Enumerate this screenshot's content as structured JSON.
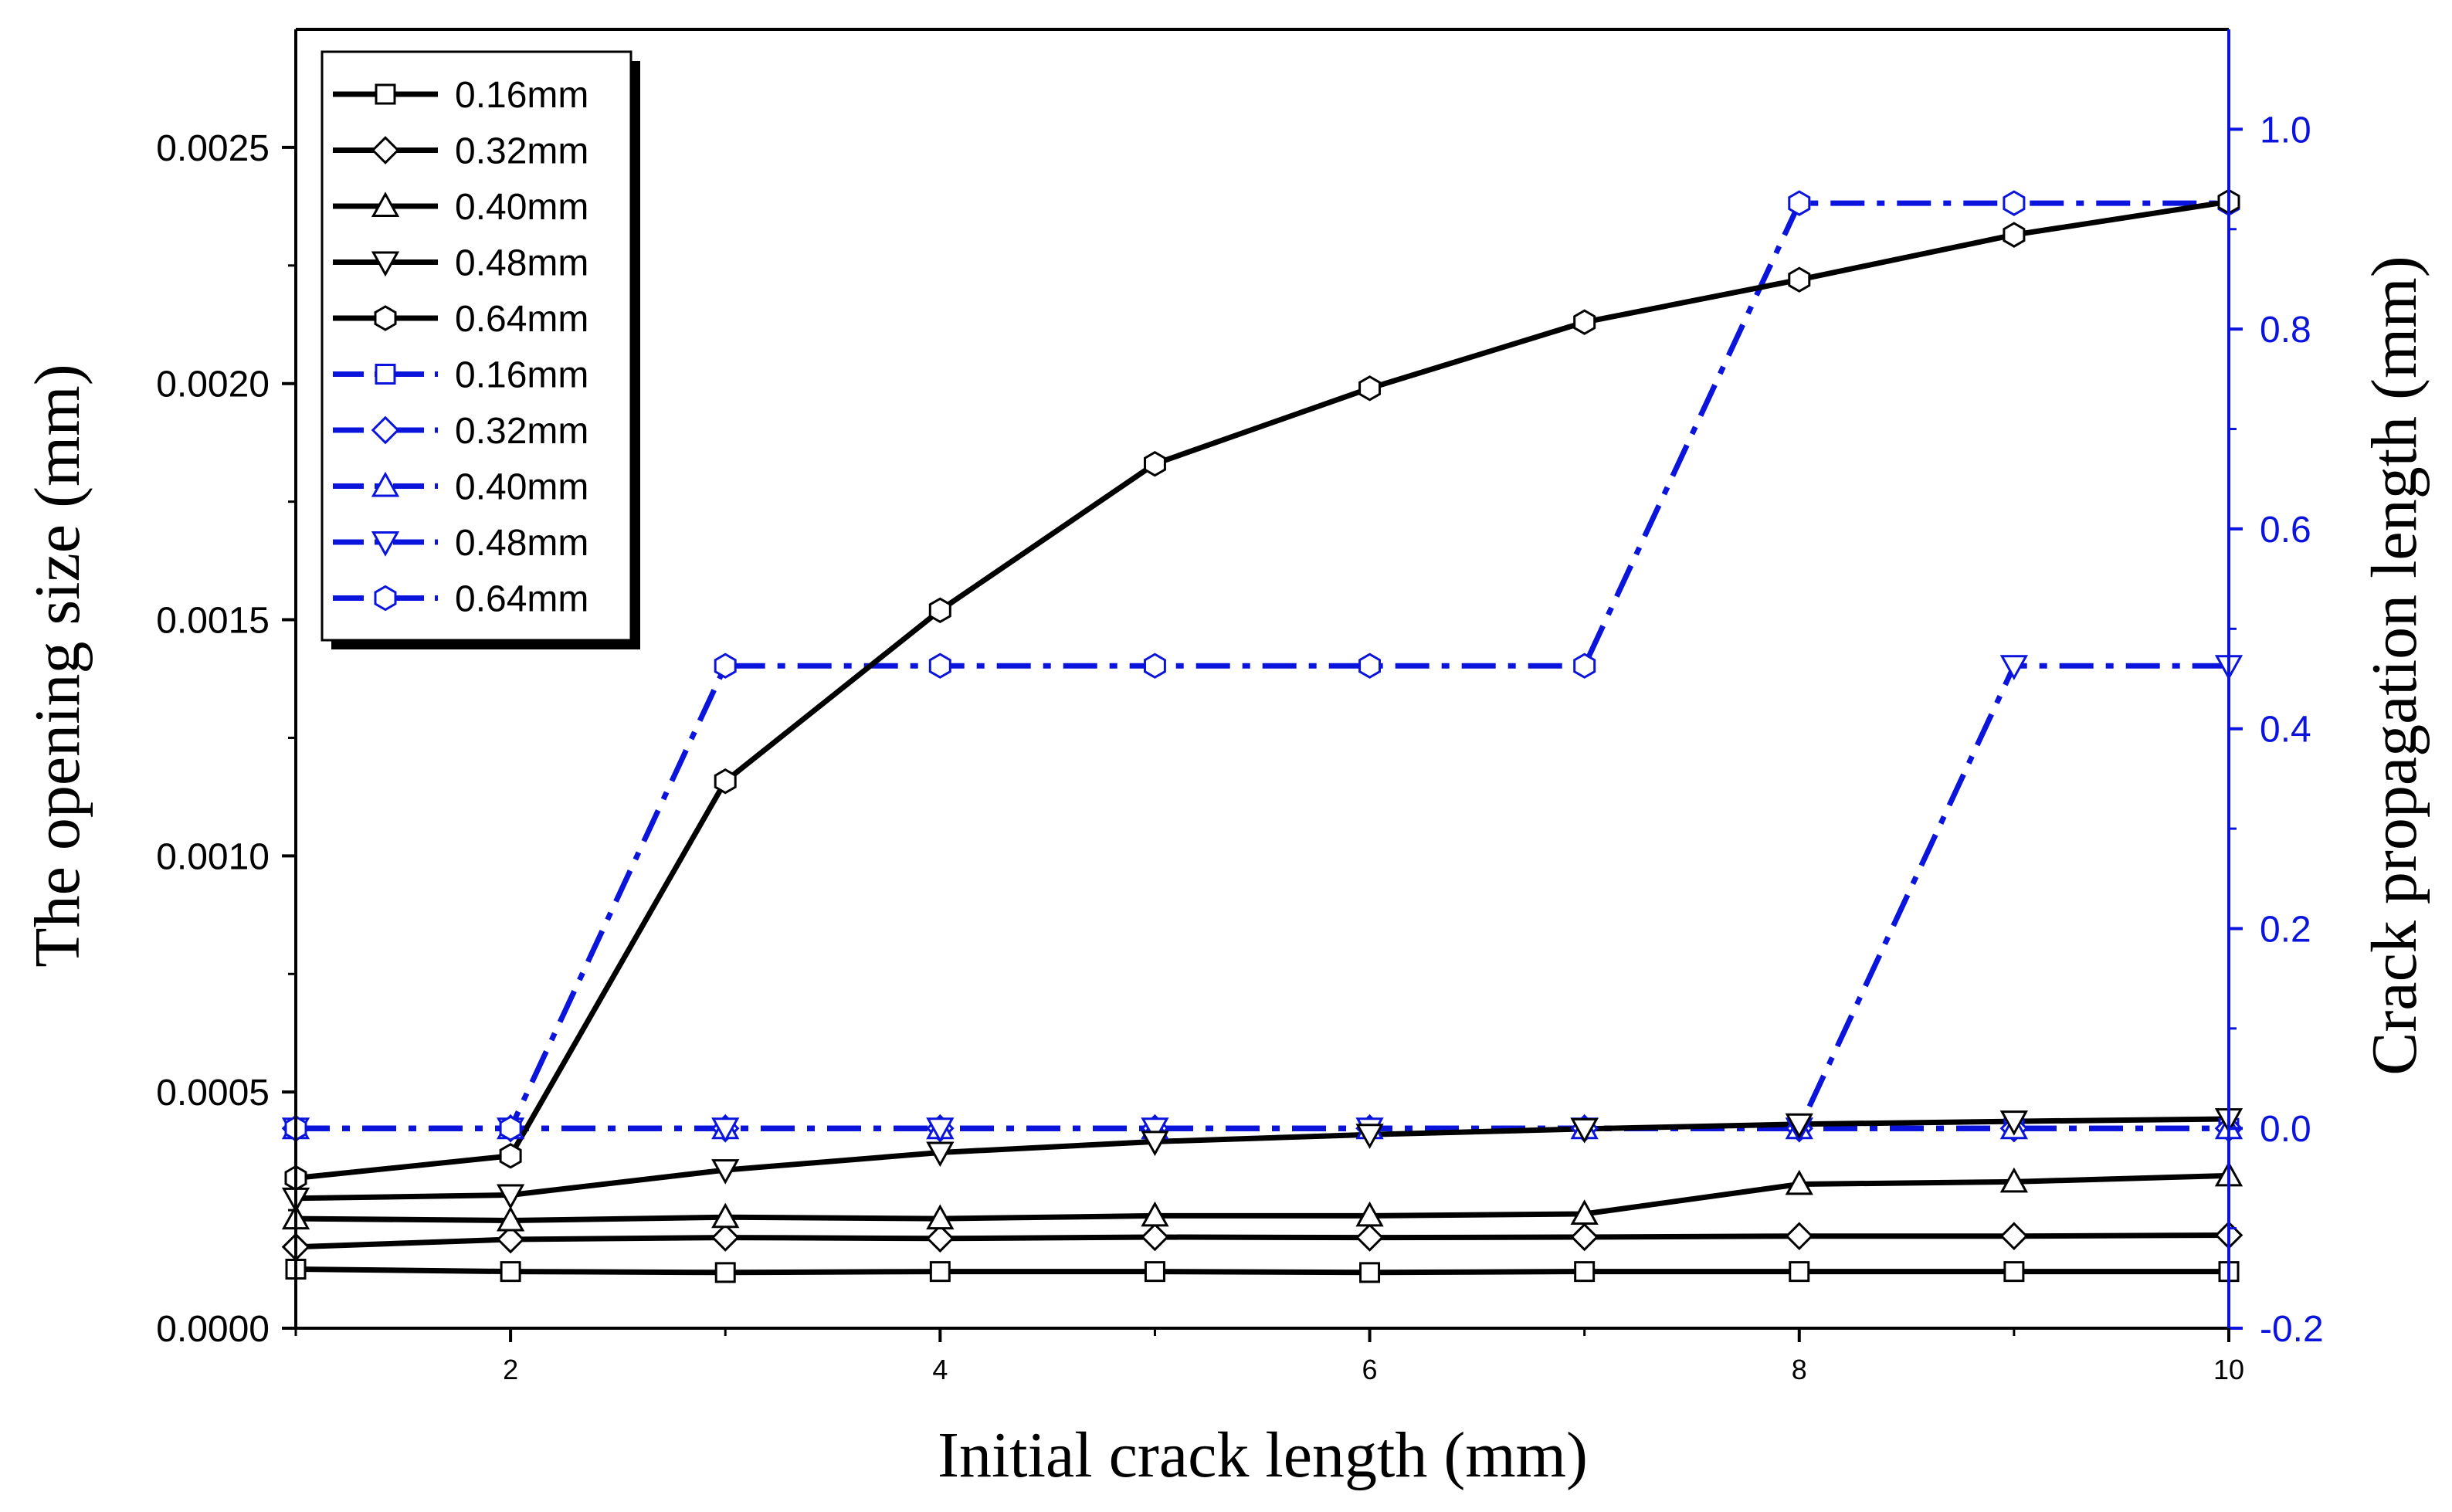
{
  "chart_data": {
    "type": "line",
    "title": "",
    "xlabel": "Initial crack length (mm)",
    "ylabel": "The opening size (mm)",
    "ylabel_right": "Crack propagation length (mm)",
    "xlim": [
      1,
      10
    ],
    "ylim": [
      0,
      0.00275
    ],
    "ylim_right": [
      -0.2,
      1.1
    ],
    "x_ticks": [
      2,
      4,
      6,
      8,
      10
    ],
    "x_tick_labels": [
      "2",
      "4",
      "6",
      "8",
      "10"
    ],
    "y_ticks": [
      0,
      0.0005,
      0.001,
      0.0015,
      0.002,
      0.0025
    ],
    "y_tick_labels": [
      "0.0000",
      "0.0005",
      "0.0010",
      "0.0015",
      "0.0020",
      "0.0025"
    ],
    "y_right_ticks": [
      -0.2,
      0,
      0.2,
      0.4,
      0.6,
      0.8,
      1.0
    ],
    "y_right_tick_labels": [
      "-0.2",
      "0.0",
      "0.2",
      "0.4",
      "0.6",
      "0.8",
      "1.0"
    ],
    "grid": false,
    "legend_position": "top-left",
    "x": [
      1,
      2,
      3,
      4,
      5,
      6,
      7,
      8,
      9,
      10
    ],
    "series": [
      {
        "name": "0.16mm",
        "axis": "left",
        "color": "#000000",
        "style": "solid",
        "marker": "square",
        "values": [
          0.000125,
          0.00012,
          0.000118,
          0.00012,
          0.00012,
          0.000118,
          0.00012,
          0.00012,
          0.00012,
          0.00012
        ]
      },
      {
        "name": "0.32mm",
        "axis": "left",
        "color": "#000000",
        "style": "solid",
        "marker": "diamond",
        "values": [
          0.000172,
          0.000188,
          0.000192,
          0.00019,
          0.000193,
          0.000192,
          0.000193,
          0.000195,
          0.000195,
          0.000197
        ]
      },
      {
        "name": "0.40mm",
        "axis": "left",
        "color": "#000000",
        "style": "solid",
        "marker": "triangle-up",
        "values": [
          0.000232,
          0.000228,
          0.000235,
          0.000232,
          0.000238,
          0.000238,
          0.000242,
          0.000305,
          0.00031,
          0.000323
        ]
      },
      {
        "name": "0.48mm",
        "axis": "left",
        "color": "#000000",
        "style": "solid",
        "marker": "triangle-down",
        "values": [
          0.000275,
          0.000282,
          0.000335,
          0.000372,
          0.000395,
          0.00041,
          0.000422,
          0.000432,
          0.000438,
          0.000443
        ]
      },
      {
        "name": "0.64mm",
        "axis": "left",
        "color": "#000000",
        "style": "solid",
        "marker": "hexagon",
        "values": [
          0.000318,
          0.000365,
          0.001158,
          0.00152,
          0.00183,
          0.00199,
          0.00213,
          0.00222,
          0.002315,
          0.002385
        ]
      },
      {
        "name": "0.16mm",
        "axis": "right",
        "color": "#0a14dc",
        "style": "dashdot",
        "marker": "square",
        "values": [
          0,
          0,
          0,
          0,
          0,
          0,
          0,
          0,
          0,
          0
        ]
      },
      {
        "name": "0.32mm",
        "axis": "right",
        "color": "#0a14dc",
        "style": "dashdot",
        "marker": "diamond",
        "values": [
          0,
          0,
          0,
          0,
          0,
          0,
          0,
          0,
          0,
          0
        ]
      },
      {
        "name": "0.40mm",
        "axis": "right",
        "color": "#0a14dc",
        "style": "dashdot",
        "marker": "triangle-up",
        "values": [
          0,
          0,
          0,
          0,
          0,
          0,
          0,
          0,
          0,
          0
        ]
      },
      {
        "name": "0.48mm",
        "axis": "right",
        "color": "#0a14dc",
        "style": "dashdot",
        "marker": "triangle-down",
        "values": [
          0,
          0,
          0,
          0,
          0,
          0,
          0,
          0,
          0.463,
          0.463
        ]
      },
      {
        "name": "0.64mm",
        "axis": "right",
        "color": "#0a14dc",
        "style": "dashdot",
        "marker": "hexagon",
        "values": [
          0,
          0,
          0.463,
          0.463,
          0.463,
          0.463,
          0.463,
          0.926,
          0.926,
          0.926
        ]
      }
    ],
    "colors": {
      "left_axis": "#000000",
      "right_axis": "#0a14dc"
    }
  }
}
